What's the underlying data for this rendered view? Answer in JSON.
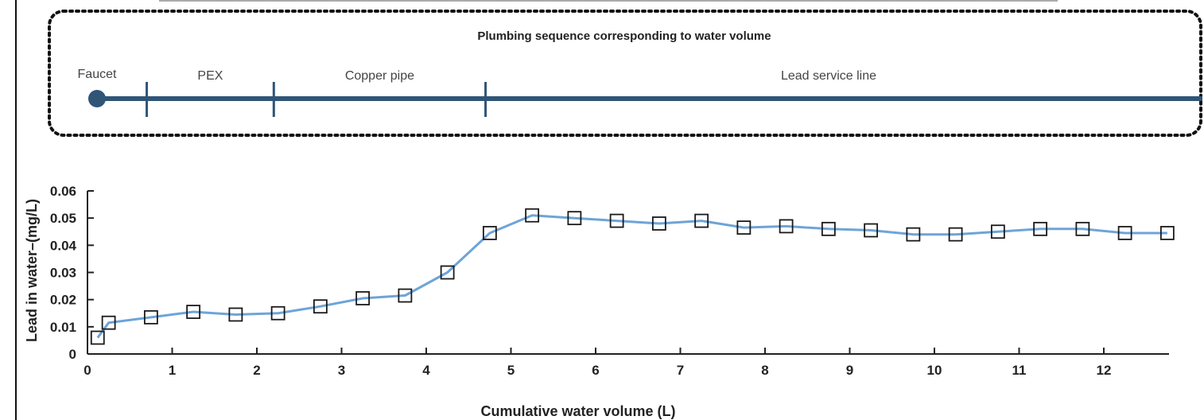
{
  "plumbing": {
    "title": "Plumbing sequence corresponding to water volume",
    "segments": [
      {
        "label": "Faucet",
        "start": 0.12,
        "end": 0.12
      },
      {
        "label": "PEX",
        "start": 0.7,
        "end": 2.2
      },
      {
        "label": "Copper pipe",
        "start": 2.2,
        "end": 4.7
      },
      {
        "label": "Lead service line",
        "start": 4.7,
        "end": 13.0
      }
    ],
    "boundaries": [
      0.7,
      2.2,
      4.7
    ],
    "colors": {
      "line": "#2f5577",
      "border": "#111111"
    }
  },
  "chart_data": {
    "type": "line",
    "title": "",
    "xlabel": "Cumulative water volume (L)",
    "ylabel": "Lead in water–(mg/L)",
    "xlim": [
      0,
      12.75
    ],
    "ylim": [
      0,
      0.06
    ],
    "xticks": [
      0,
      1,
      2,
      3,
      4,
      5,
      6,
      7,
      8,
      9,
      10,
      11,
      12
    ],
    "yticks": [
      0,
      0.01,
      0.02,
      0.03,
      0.04,
      0.05,
      0.06
    ],
    "ytick_labels": [
      "0",
      "0.01",
      "0.02",
      "0.03",
      "0.04",
      "0.05",
      "0.06"
    ],
    "grid": false,
    "series": [
      {
        "marker": "square",
        "color": "#6ea4d8",
        "x": [
          0.12,
          0.25,
          0.75,
          1.25,
          1.75,
          2.25,
          2.75,
          3.25,
          3.75,
          4.25,
          4.75,
          5.25,
          5.75,
          6.25,
          6.75,
          7.25,
          7.75,
          8.25,
          8.75,
          9.25,
          9.75,
          10.25,
          10.75,
          11.25,
          11.75,
          12.25,
          12.75
        ],
        "y": [
          0.006,
          0.0115,
          0.0135,
          0.0155,
          0.0145,
          0.015,
          0.0175,
          0.0205,
          0.0215,
          0.03,
          0.0445,
          0.051,
          0.05,
          0.049,
          0.048,
          0.049,
          0.0465,
          0.047,
          0.046,
          0.0455,
          0.044,
          0.044,
          0.045,
          0.046,
          0.046,
          0.0445,
          0.0445
        ]
      }
    ]
  }
}
